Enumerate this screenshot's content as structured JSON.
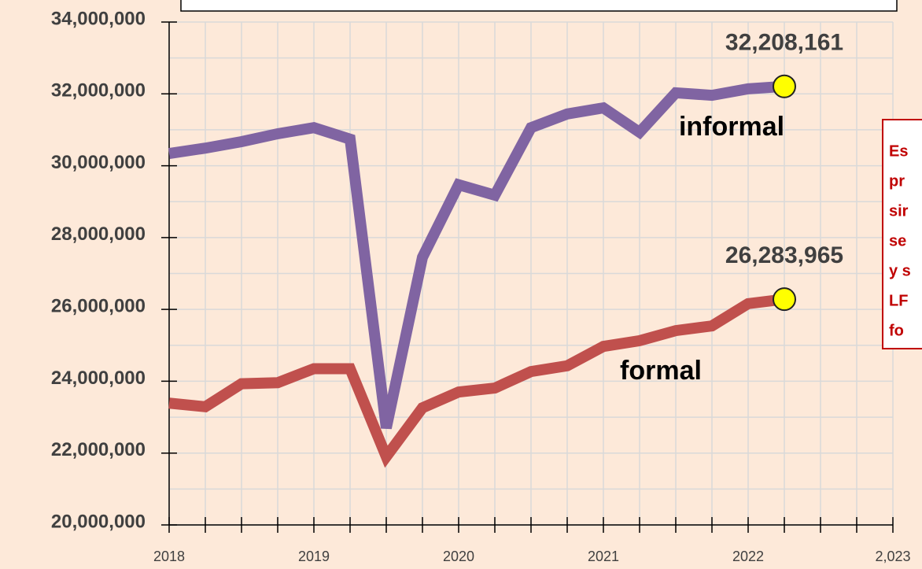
{
  "chart_data": {
    "type": "line",
    "x": [
      2018,
      2018.25,
      2018.5,
      2018.75,
      2019,
      2019.25,
      2019.5,
      2019.75,
      2020,
      2020.25,
      2020.5,
      2020.75,
      2021,
      2021.25,
      2021.5,
      2021.75,
      2022,
      2022.25
    ],
    "series": [
      {
        "name": "informal",
        "color": "#8064a2",
        "marker_color": "#ffff00",
        "end_label": "32,208,161",
        "values": [
          30340000,
          30490000,
          30670000,
          30890000,
          31060000,
          30740000,
          22700000,
          27450000,
          29470000,
          29180000,
          31060000,
          31440000,
          31610000,
          30930000,
          32030000,
          31960000,
          32140000,
          32208161
        ]
      },
      {
        "name": "formal",
        "color": "#c0504d",
        "marker_color": "#ffff00",
        "end_label": "26,283,965",
        "values": [
          23390000,
          23290000,
          23930000,
          23960000,
          24350000,
          24350000,
          21900000,
          23260000,
          23700000,
          23810000,
          24270000,
          24430000,
          24970000,
          25130000,
          25410000,
          25540000,
          26160000,
          26283965
        ]
      }
    ],
    "xlim": [
      2018,
      2023
    ],
    "xticks": [
      2018,
      2019,
      2020,
      2021,
      2022,
      {
        "value": 2023,
        "label": "2,023"
      }
    ],
    "xminorticks": [
      2018.25,
      2018.5,
      2018.75,
      2019.25,
      2019.5,
      2019.75,
      2020.25,
      2020.5,
      2020.75,
      2021.25,
      2021.5,
      2021.75,
      2022.25,
      2022.5,
      2022.75
    ],
    "ylim": [
      20000000,
      34000000
    ],
    "yticks": [
      {
        "value": 20000000,
        "label": "20,000,000"
      },
      {
        "value": 22000000,
        "label": "22,000,000"
      },
      {
        "value": 24000000,
        "label": "24,000,000"
      },
      {
        "value": 26000000,
        "label": "26,000,000"
      },
      {
        "value": 28000000,
        "label": "28,000,000"
      },
      {
        "value": 30000000,
        "label": "30,000,000"
      },
      {
        "value": 32000000,
        "label": "32,000,000"
      },
      {
        "value": 34000000,
        "label": "34,000,000"
      }
    ],
    "yminorticks": [
      21000000,
      23000000,
      25000000,
      27000000,
      29000000,
      31000000,
      33000000
    ],
    "grid": true,
    "annotation_lines": [
      "Es",
      "pr",
      "sir",
      "se",
      "y s",
      "LF",
      "fo"
    ]
  }
}
